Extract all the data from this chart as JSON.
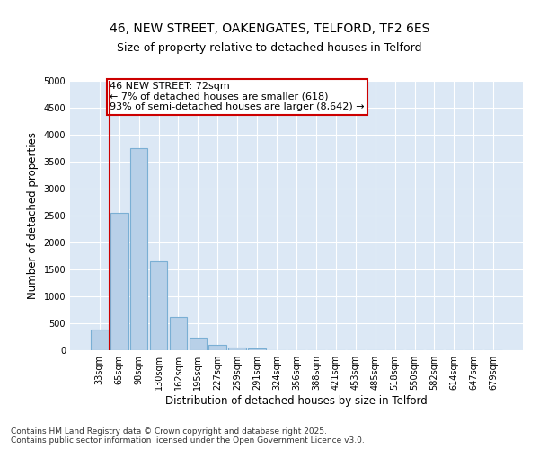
{
  "title_line1": "46, NEW STREET, OAKENGATES, TELFORD, TF2 6ES",
  "title_line2": "Size of property relative to detached houses in Telford",
  "xlabel": "Distribution of detached houses by size in Telford",
  "ylabel": "Number of detached properties",
  "categories": [
    "33sqm",
    "65sqm",
    "98sqm",
    "130sqm",
    "162sqm",
    "195sqm",
    "227sqm",
    "259sqm",
    "291sqm",
    "324sqm",
    "356sqm",
    "388sqm",
    "421sqm",
    "453sqm",
    "485sqm",
    "518sqm",
    "550sqm",
    "582sqm",
    "614sqm",
    "647sqm",
    "679sqm"
  ],
  "values": [
    380,
    2550,
    3750,
    1650,
    620,
    230,
    95,
    50,
    40,
    5,
    0,
    0,
    0,
    0,
    0,
    0,
    0,
    0,
    0,
    0,
    0
  ],
  "bar_color": "#b8d0e8",
  "bar_edge_color": "#7aafd4",
  "vline_color": "#cc0000",
  "annotation_text": "46 NEW STREET: 72sqm\n← 7% of detached houses are smaller (618)\n93% of semi-detached houses are larger (8,642) →",
  "annotation_box_color": "#cc0000",
  "ylim": [
    0,
    5000
  ],
  "yticks": [
    0,
    500,
    1000,
    1500,
    2000,
    2500,
    3000,
    3500,
    4000,
    4500,
    5000
  ],
  "background_color": "#dce8f5",
  "footer_line1": "Contains HM Land Registry data © Crown copyright and database right 2025.",
  "footer_line2": "Contains public sector information licensed under the Open Government Licence v3.0.",
  "title_fontsize": 10,
  "subtitle_fontsize": 9,
  "axis_label_fontsize": 8.5,
  "tick_fontsize": 7,
  "annotation_fontsize": 8,
  "footer_fontsize": 6.5
}
